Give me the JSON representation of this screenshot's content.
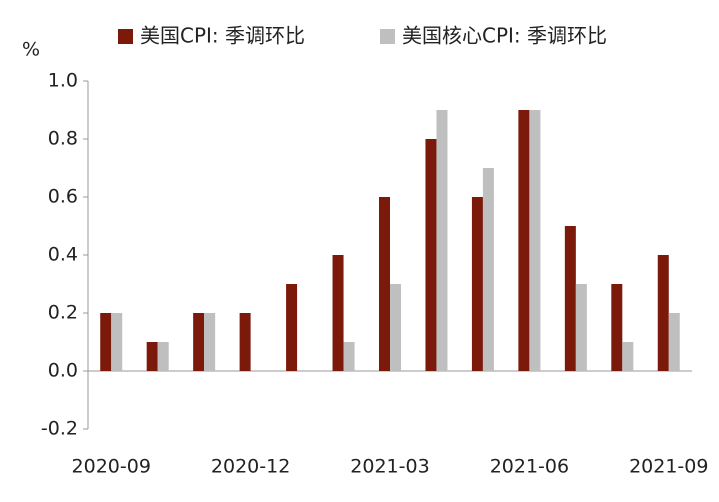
{
  "chart_data": {
    "type": "bar",
    "y_label": "%",
    "categories": [
      "2020-09",
      null,
      null,
      "2020-12",
      null,
      null,
      "2021-03",
      null,
      null,
      "2021-06",
      null,
      null,
      "2021-09"
    ],
    "series": [
      {
        "name": "美国CPI: 季调环比",
        "color": "#7B1A0A",
        "values": [
          0.2,
          0.1,
          0.2,
          0.2,
          0.3,
          0.4,
          0.6,
          0.8,
          0.6,
          0.9,
          0.5,
          0.3,
          0.4
        ]
      },
      {
        "name": "美国核心CPI: 季调环比",
        "color": "#BFBFBF",
        "values": [
          0.2,
          0.1,
          0.2,
          0.0,
          0.0,
          0.1,
          0.3,
          0.9,
          0.7,
          0.9,
          0.3,
          0.1,
          0.2
        ]
      }
    ],
    "ylim": [
      -0.2,
      1.0
    ],
    "yticks": [
      -0.2,
      {
        "value": 0,
        "label": "0.0"
      },
      0.2,
      0.4,
      0.6,
      0.8,
      {
        "value": 1,
        "label": "1.0"
      }
    ],
    "grid": false,
    "legend": "top"
  }
}
